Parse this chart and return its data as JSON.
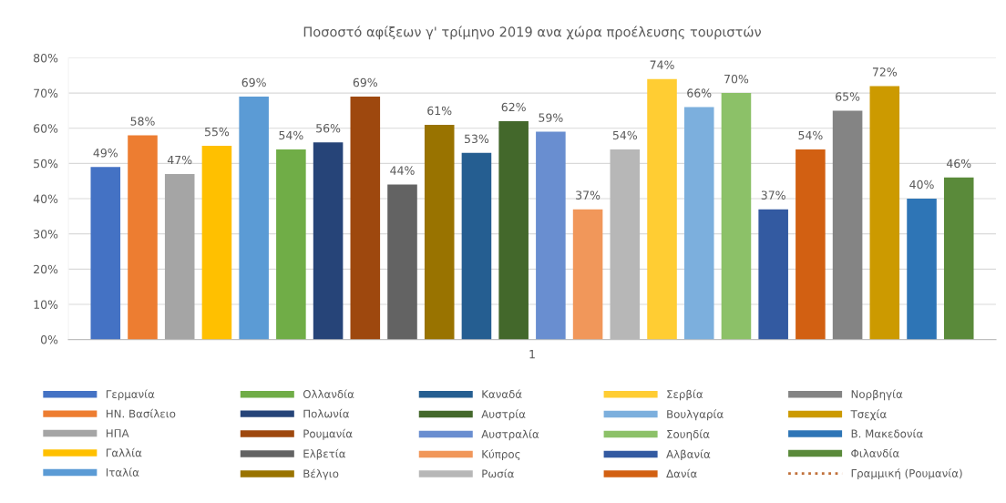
{
  "chart_data": {
    "type": "bar",
    "title": "Ποσοστό αφίξεων γ' τρίμηνο 2019 ανα χώρα προέλευσης τουριστών",
    "categories": [
      "1"
    ],
    "series": [
      {
        "name": "Γερμανία",
        "color": "#4472c4",
        "values": [
          49
        ],
        "value_labels": [
          "49%"
        ]
      },
      {
        "name": "ΗΝ. Βασίλειο",
        "color": "#ed7d31",
        "values": [
          58
        ],
        "value_labels": [
          "58%"
        ]
      },
      {
        "name": "ΗΠΑ",
        "color": "#a5a5a5",
        "values": [
          47
        ],
        "value_labels": [
          "47%"
        ]
      },
      {
        "name": "Γαλλία",
        "color": "#ffc000",
        "values": [
          55
        ],
        "value_labels": [
          "55%"
        ]
      },
      {
        "name": "Ιταλία",
        "color": "#5b9bd5",
        "values": [
          69
        ],
        "value_labels": [
          "69%"
        ]
      },
      {
        "name": "Ολλανδία",
        "color": "#70ad47",
        "values": [
          54
        ],
        "value_labels": [
          "54%"
        ]
      },
      {
        "name": "Πολωνία",
        "color": "#264478",
        "values": [
          56
        ],
        "value_labels": [
          "56%"
        ]
      },
      {
        "name": "Ρουμανία",
        "color": "#9e480e",
        "values": [
          69
        ],
        "value_labels": [
          "69%"
        ]
      },
      {
        "name": "Ελβετία",
        "color": "#636363",
        "values": [
          44
        ],
        "value_labels": [
          "44%"
        ]
      },
      {
        "name": "Βέλγιο",
        "color": "#997300",
        "values": [
          61
        ],
        "value_labels": [
          "61%"
        ]
      },
      {
        "name": "Καναδά",
        "color": "#255e91",
        "values": [
          53
        ],
        "value_labels": [
          "53%"
        ]
      },
      {
        "name": "Αυστρία",
        "color": "#43682b",
        "values": [
          62
        ],
        "value_labels": [
          "62%"
        ]
      },
      {
        "name": "Αυστραλία",
        "color": "#698ed0",
        "values": [
          59
        ],
        "value_labels": [
          "59%"
        ]
      },
      {
        "name": "Κύπρος",
        "color": "#f1975a",
        "values": [
          37
        ],
        "value_labels": [
          "37%"
        ]
      },
      {
        "name": "Ρωσία",
        "color": "#b7b7b7",
        "values": [
          54
        ],
        "value_labels": [
          "54%"
        ]
      },
      {
        "name": "Σερβία",
        "color": "#ffcd33",
        "values": [
          74
        ],
        "value_labels": [
          "74%"
        ]
      },
      {
        "name": "Βουλγαρία",
        "color": "#7cafdd",
        "values": [
          66
        ],
        "value_labels": [
          "66%"
        ]
      },
      {
        "name": "Σουηδία",
        "color": "#8cc168",
        "values": [
          70
        ],
        "value_labels": [
          "70%"
        ]
      },
      {
        "name": "Αλβανία",
        "color": "#335aa1",
        "values": [
          37
        ],
        "value_labels": [
          "37%"
        ]
      },
      {
        "name": "Δανία",
        "color": "#d26012",
        "values": [
          54
        ],
        "value_labels": [
          "54%"
        ]
      },
      {
        "name": "Νορβηγία",
        "color": "#848484",
        "values": [
          65
        ],
        "value_labels": [
          "65%"
        ]
      },
      {
        "name": "Τσεχία",
        "color": "#cc9a00",
        "values": [
          72
        ],
        "value_labels": [
          "72%"
        ]
      },
      {
        "name": "Β. Μακεδονία",
        "color": "#2e75b6",
        "values": [
          40
        ],
        "value_labels": [
          "40%"
        ]
      },
      {
        "name": "Φιλανδία",
        "color": "#5a8a3a",
        "values": [
          46
        ],
        "value_labels": [
          "46%"
        ]
      },
      {
        "name": "Γραμμική (Ρουμανία)",
        "type": "line",
        "line_style": "dotted",
        "color": "#c0703a",
        "values": [
          null
        ]
      }
    ],
    "ylim": [
      0,
      80
    ],
    "yticks": [
      {
        "value": 0,
        "label": "0%"
      },
      {
        "value": 10,
        "label": "10%"
      },
      {
        "value": 20,
        "label": "20%"
      },
      {
        "value": 30,
        "label": "30%"
      },
      {
        "value": 40,
        "label": "40%"
      },
      {
        "value": 50,
        "label": "50%"
      },
      {
        "value": 60,
        "label": "60%"
      },
      {
        "value": 70,
        "label": "70%"
      },
      {
        "value": 80,
        "label": "80%"
      }
    ],
    "grid": "y",
    "legend": "bottom"
  }
}
